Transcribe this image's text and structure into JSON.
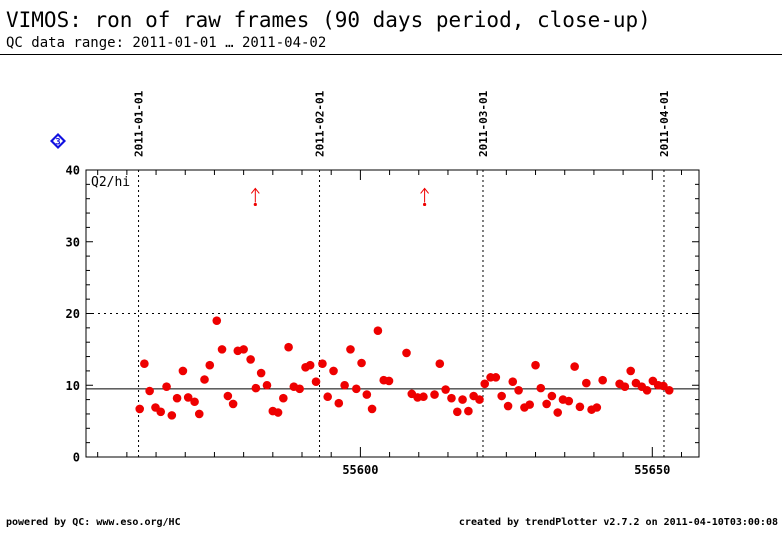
{
  "header": {
    "title": "VIMOS: ron of raw frames (90 days period, close-up)",
    "subtitle": "QC data range: 2011-01-01 … 2011-04-02"
  },
  "footer": {
    "left": "powered by QC: www.eso.org/HC",
    "right": "created by trendPlotter v2.7.2 on 2011-04-10T03:00:08"
  },
  "badge": {
    "label": "3",
    "color": "#1010e0"
  },
  "chart_data": {
    "type": "scatter",
    "panel_label": "Q2/hi",
    "xlim": [
      55553,
      55658
    ],
    "ylim": [
      0,
      40
    ],
    "x_ticks": [
      55600,
      55650
    ],
    "y_ticks": [
      0,
      10,
      20,
      30,
      40
    ],
    "reference_line": 9.5,
    "threshold_line": 20,
    "date_markers": [
      {
        "label": "2011-01-01",
        "x": 55562
      },
      {
        "label": "2011-02-01",
        "x": 55593
      },
      {
        "label": "2011-03-01",
        "x": 55621
      },
      {
        "label": "2011-04-01",
        "x": 55652
      }
    ],
    "outliers": [
      {
        "x": 55582,
        "y": 35.2
      },
      {
        "x": 55611,
        "y": 35.2
      }
    ],
    "point_color": "#ee0000",
    "series": [
      {
        "x": [
          55562.2,
          55563.0,
          55563.9,
          55564.9,
          55565.8,
          55566.8,
          55567.7,
          55568.6,
          55569.6,
          55570.5,
          55571.6,
          55572.4,
          55573.3,
          55574.2,
          55575.4,
          55576.3,
          55577.3,
          55578.2,
          55579.0,
          55580.0,
          55581.2,
          55582.1,
          55583.0,
          55584.0,
          55585.0,
          55585.9,
          55586.8,
          55587.7,
          55588.6,
          55589.6,
          55590.6,
          55591.4,
          55592.4,
          55593.5,
          55594.4,
          55595.4,
          55596.3,
          55597.3,
          55598.3,
          55599.3,
          55600.2,
          55601.1,
          55602.0,
          55603.0,
          55604.0,
          55604.9,
          55607.9,
          55608.8,
          55609.8,
          55610.8,
          55612.7,
          55613.6,
          55614.6,
          55615.6,
          55616.6,
          55617.5,
          55618.5,
          55619.4,
          55620.4,
          55621.3,
          55622.3,
          55623.2,
          55624.2,
          55625.3,
          55626.1,
          55627.1,
          55628.1,
          55629.0,
          55630.0,
          55630.9,
          55631.9,
          55632.8,
          55633.8,
          55634.7,
          55635.7,
          55636.7,
          55637.6,
          55638.7,
          55639.6,
          55640.5,
          55641.5,
          55644.4,
          55645.3,
          55646.3,
          55647.2,
          55648.2,
          55649.1,
          55650.1,
          55651.0,
          55651.9,
          55652.9
        ],
        "y": [
          6.7,
          13.0,
          9.2,
          6.9,
          6.3,
          9.8,
          5.8,
          8.2,
          12.0,
          8.3,
          7.7,
          6.0,
          10.8,
          12.8,
          19.0,
          15.0,
          8.5,
          7.4,
          14.8,
          15.0,
          13.6,
          9.6,
          11.7,
          10.0,
          6.4,
          6.2,
          8.2,
          15.3,
          9.8,
          9.5,
          12.5,
          12.8,
          10.5,
          13.0,
          8.4,
          12.0,
          7.5,
          10.0,
          15.0,
          9.5,
          13.1,
          8.7,
          6.7,
          17.6,
          10.7,
          10.6,
          14.5,
          8.8,
          8.3,
          8.4,
          8.7,
          13.0,
          9.4,
          8.2,
          6.3,
          8.0,
          6.4,
          8.5,
          8.0,
          10.2,
          11.1,
          11.1,
          8.5,
          7.1,
          10.5,
          9.3,
          6.9,
          7.3,
          12.8,
          9.6,
          7.4,
          8.5,
          6.2,
          8.0,
          7.8,
          12.6,
          7.0,
          10.3,
          6.6,
          6.9,
          10.7,
          10.2,
          9.8,
          12.0,
          10.3,
          9.8,
          9.3,
          10.6,
          10.0,
          9.9,
          9.3
        ]
      }
    ]
  }
}
